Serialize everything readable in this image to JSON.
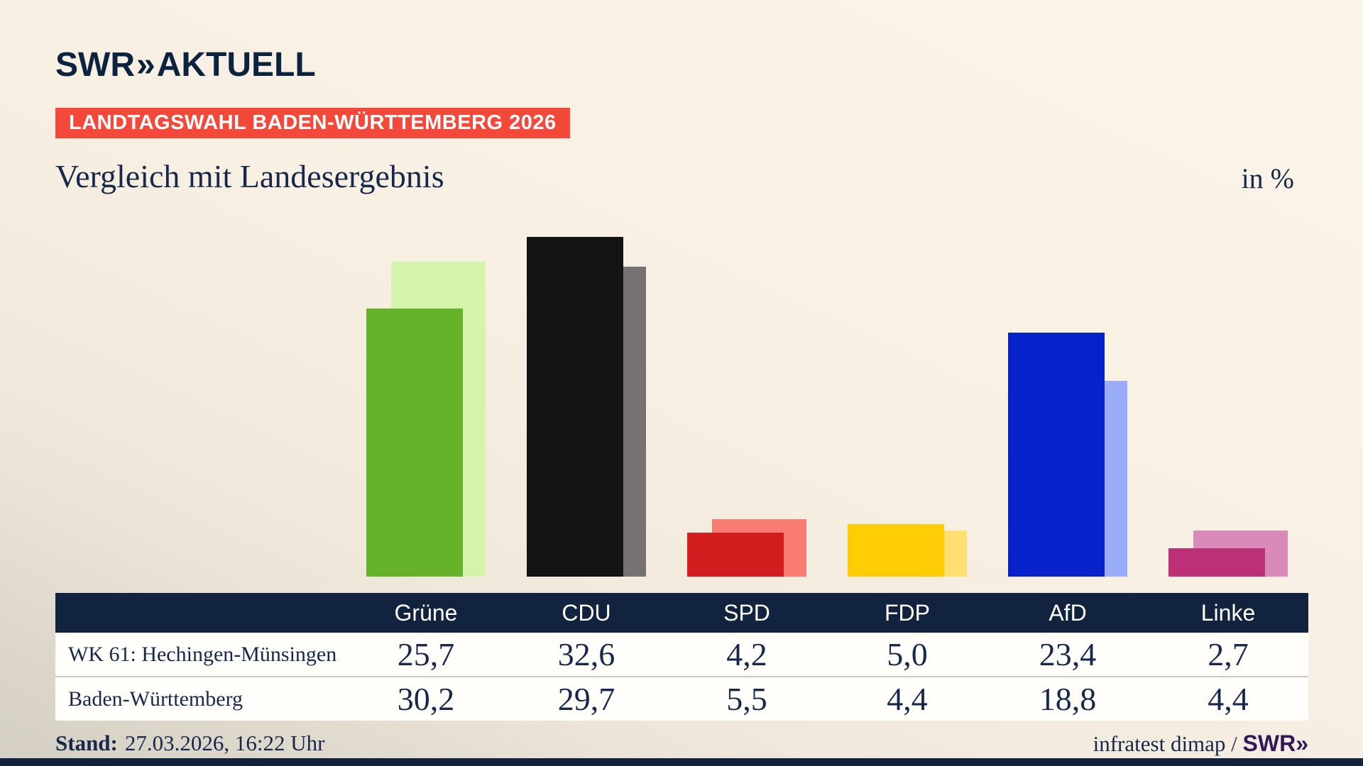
{
  "brand": {
    "logo_text": "SWR",
    "logo_chevrons": "»",
    "logo_suffix": "AKTUELL"
  },
  "badge": {
    "label": "LANDTAGSWAHL BADEN-WÜRTTEMBERG 2026",
    "background": "#f4483a"
  },
  "title": "Vergleich mit Landesergebnis",
  "unit_label": "in %",
  "footer": {
    "stand_label": "Stand:",
    "stand_value": "27.03.2026, 16:22 Uhr",
    "source_text": "infratest dimap / ",
    "source_brand": "SWR»"
  },
  "colors": {
    "header_navy": "#12233f",
    "text_navy": "#16294d",
    "badge_red": "#f4483a",
    "background_cream": "#f8f0e3"
  },
  "chart_data": {
    "type": "bar",
    "title": "Vergleich mit Landesergebnis",
    "unit": "in %",
    "categories": [
      "Grüne",
      "CDU",
      "SPD",
      "FDP",
      "AfD",
      "Linke"
    ],
    "series": [
      {
        "name": "WK 61: Hechingen-Münsingen",
        "values": [
          25.7,
          32.6,
          4.2,
          5.0,
          23.4,
          2.7
        ],
        "labels": [
          "25,7",
          "32,6",
          "4,2",
          "5,0",
          "23,4",
          "2,7"
        ],
        "colors": [
          "#65b22b",
          "#141414",
          "#d21e1f",
          "#ffcc05",
          "#0622cb",
          "#bc3078"
        ]
      },
      {
        "name": "Baden-Württemberg",
        "values": [
          30.2,
          29.7,
          5.5,
          4.4,
          18.8,
          4.4
        ],
        "labels": [
          "30,2",
          "29,7",
          "5,5",
          "4,4",
          "18,8",
          "4,4"
        ],
        "colors": [
          "#d4f3ab",
          "#767271",
          "#f87c72",
          "#fedf70",
          "#9aabf9",
          "#d98ab8"
        ]
      }
    ],
    "ylim": [
      0,
      35
    ],
    "grid": false,
    "legend_position": "table-below-chart",
    "layout_note": "foreground bar = WK 61 result, lighter offset background bar = state result"
  }
}
